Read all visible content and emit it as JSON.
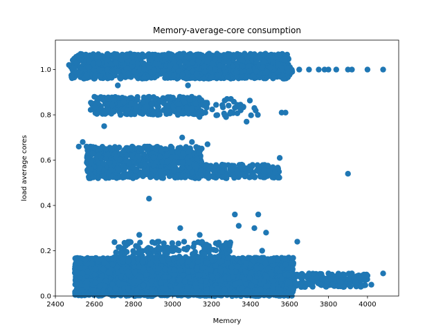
{
  "chart_data": {
    "type": "scatter",
    "title": "Memory-average-core consumption",
    "xlabel": "Memory",
    "ylabel": "load average cores",
    "xlim": [
      2400,
      4160
    ],
    "ylim": [
      0.0,
      1.13
    ],
    "xticks": [
      2400,
      2600,
      2800,
      3000,
      3200,
      3400,
      3600,
      3800,
      4000
    ],
    "yticks": [
      0.0,
      0.2,
      0.4,
      0.6,
      0.8,
      1.0
    ],
    "xtick_labels": [
      "2400",
      "2600",
      "2800",
      "3000",
      "3200",
      "3400",
      "3600",
      "3800",
      "4000"
    ],
    "ytick_labels": [
      "0.0",
      "0.2",
      "0.4",
      "0.6",
      "0.8",
      "1.0"
    ],
    "grid": false,
    "legend": "none",
    "color": "#1f77b4",
    "series": [
      {
        "clusters": [
          {
            "x_range": [
              2480,
              3600
            ],
            "y_range": [
              0.96,
              1.07
            ],
            "count": 1400
          },
          {
            "x_range": [
              3300,
              3620
            ],
            "y_range": [
              0.985,
              1.015
            ],
            "count": 160
          },
          {
            "x_range": [
              2580,
              3150
            ],
            "y_range": [
              0.8,
              0.88
            ],
            "count": 320
          },
          {
            "x_range": [
              3000,
              3450
            ],
            "y_range": [
              0.79,
              0.87
            ],
            "count": 60
          },
          {
            "x_range": [
              2560,
              3150
            ],
            "y_range": [
              0.52,
              0.66
            ],
            "count": 700
          },
          {
            "x_range": [
              3100,
              3550
            ],
            "y_range": [
              0.52,
              0.58
            ],
            "count": 220
          },
          {
            "x_range": [
              2500,
              3620
            ],
            "y_range": [
              0.0,
              0.17
            ],
            "count": 3200
          },
          {
            "x_range": [
              2700,
              3300
            ],
            "y_range": [
              0.15,
              0.24
            ],
            "count": 160
          },
          {
            "x_range": [
              3580,
              4000
            ],
            "y_range": [
              0.04,
              0.1
            ],
            "count": 180
          }
        ],
        "points": [
          [
            3650,
            1.0
          ],
          [
            3700,
            1.0
          ],
          [
            3750,
            1.0
          ],
          [
            3780,
            1.0
          ],
          [
            3800,
            1.0
          ],
          [
            3840,
            1.0
          ],
          [
            3900,
            1.0
          ],
          [
            3920,
            1.0
          ],
          [
            4000,
            1.0
          ],
          [
            4080,
            1.0
          ],
          [
            3560,
            0.81
          ],
          [
            3580,
            0.81
          ],
          [
            3420,
            0.83
          ],
          [
            3350,
            0.82
          ],
          [
            3380,
            0.77
          ],
          [
            2880,
            0.43
          ],
          [
            3900,
            0.54
          ],
          [
            3550,
            0.61
          ],
          [
            3450,
            0.53
          ],
          [
            3280,
            0.87
          ],
          [
            3300,
            0.87
          ],
          [
            2720,
            0.93
          ],
          [
            3080,
            0.93
          ],
          [
            3120,
            0.85
          ],
          [
            2600,
            0.88
          ],
          [
            3050,
            0.7
          ],
          [
            3100,
            0.68
          ],
          [
            3180,
            0.67
          ],
          [
            2650,
            0.75
          ],
          [
            2540,
            0.68
          ],
          [
            2560,
            0.66
          ],
          [
            3320,
            0.36
          ],
          [
            3340,
            0.31
          ],
          [
            3440,
            0.36
          ],
          [
            3420,
            0.3
          ],
          [
            3480,
            0.28
          ],
          [
            3040,
            0.3
          ],
          [
            3140,
            0.27
          ],
          [
            2830,
            0.27
          ],
          [
            3640,
            0.24
          ],
          [
            3460,
            0.2
          ],
          [
            3540,
            0.16
          ],
          [
            3580,
            0.14
          ],
          [
            3060,
            0.24
          ],
          [
            3700,
            0.1
          ],
          [
            3740,
            0.08
          ],
          [
            3800,
            0.1
          ],
          [
            3850,
            0.09
          ],
          [
            3860,
            0.06
          ],
          [
            3920,
            0.1
          ],
          [
            3960,
            0.08
          ],
          [
            4000,
            0.09
          ],
          [
            4020,
            0.05
          ],
          [
            4080,
            0.1
          ],
          [
            3620,
            0.03
          ],
          [
            3660,
            0.04
          ],
          [
            3680,
            0.04
          ],
          [
            3760,
            0.05
          ],
          [
            3820,
            0.05
          ],
          [
            2470,
            1.02
          ],
          [
            2520,
            0.66
          ],
          [
            2580,
            0.56
          ],
          [
            2620,
            0.62
          ],
          [
            3660,
            0.08
          ],
          [
            3600,
            0.06
          ],
          [
            2560,
            0.04
          ],
          [
            2540,
            0.1
          ]
        ]
      }
    ]
  }
}
